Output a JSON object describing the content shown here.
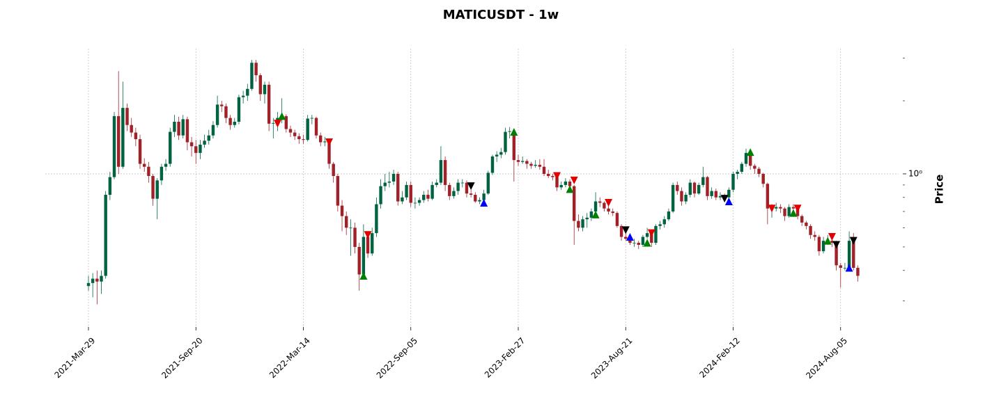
{
  "chart_data": {
    "type": "candlestick",
    "title": "MATICUSDT - 1w",
    "ylabel": "Price",
    "yscale": "log",
    "grid": true,
    "up_color": "#006340",
    "down_color": "#a02128",
    "ylim": [
      0.234,
      3.28
    ],
    "yticks": [
      {
        "value": 1,
        "label": "10⁰"
      }
    ],
    "yticks_minor": [
      0.3,
      0.4,
      0.5,
      0.6,
      0.7,
      0.8,
      0.9,
      2,
      3
    ],
    "xticks": [
      {
        "value": "2021-03-29",
        "label": "2021-Mar-29"
      },
      {
        "value": "2021-09-20",
        "label": "2021-Sep-20"
      },
      {
        "value": "2022-03-14",
        "label": "2022-Mar-14"
      },
      {
        "value": "2022-09-05",
        "label": "2022-Sep-05"
      },
      {
        "value": "2023-02-27",
        "label": "2023-Feb-27"
      },
      {
        "value": "2023-08-21",
        "label": "2023-Aug-21"
      },
      {
        "value": "2024-02-12",
        "label": "2024-Feb-12"
      },
      {
        "value": "2024-08-05",
        "label": "2024-Aug-05"
      }
    ],
    "x": [
      "2021-03-29",
      "2021-04-05",
      "2021-04-12",
      "2021-04-19",
      "2021-04-26",
      "2021-05-03",
      "2021-05-10",
      "2021-05-17",
      "2021-05-24",
      "2021-05-31",
      "2021-06-07",
      "2021-06-14",
      "2021-06-21",
      "2021-06-28",
      "2021-07-05",
      "2021-07-12",
      "2021-07-19",
      "2021-07-26",
      "2021-08-02",
      "2021-08-09",
      "2021-08-16",
      "2021-08-23",
      "2021-08-30",
      "2021-09-06",
      "2021-09-13",
      "2021-09-20",
      "2021-09-27",
      "2021-10-04",
      "2021-10-11",
      "2021-10-18",
      "2021-10-25",
      "2021-11-01",
      "2021-11-08",
      "2021-11-15",
      "2021-11-22",
      "2021-11-29",
      "2021-12-06",
      "2021-12-13",
      "2021-12-20",
      "2021-12-27",
      "2022-01-03",
      "2022-01-10",
      "2022-01-17",
      "2022-01-24",
      "2022-01-31",
      "2022-02-07",
      "2022-02-14",
      "2022-02-21",
      "2022-02-28",
      "2022-03-07",
      "2022-03-14",
      "2022-03-21",
      "2022-03-28",
      "2022-04-04",
      "2022-04-11",
      "2022-04-18",
      "2022-04-25",
      "2022-05-02",
      "2022-05-09",
      "2022-05-16",
      "2022-05-23",
      "2022-05-30",
      "2022-06-06",
      "2022-06-13",
      "2022-06-20",
      "2022-06-27",
      "2022-07-04",
      "2022-07-11",
      "2022-07-18",
      "2022-07-25",
      "2022-08-01",
      "2022-08-08",
      "2022-08-15",
      "2022-08-22",
      "2022-08-29",
      "2022-09-05",
      "2022-09-12",
      "2022-09-19",
      "2022-09-26",
      "2022-10-03",
      "2022-10-10",
      "2022-10-17",
      "2022-10-24",
      "2022-10-31",
      "2022-11-07",
      "2022-11-14",
      "2022-11-21",
      "2022-11-28",
      "2022-12-05",
      "2022-12-12",
      "2022-12-19",
      "2022-12-26",
      "2023-01-02",
      "2023-01-09",
      "2023-01-16",
      "2023-01-23",
      "2023-01-30",
      "2023-02-06",
      "2023-02-13",
      "2023-02-20",
      "2023-02-27",
      "2023-03-06",
      "2023-03-13",
      "2023-03-20",
      "2023-03-27",
      "2023-04-03",
      "2023-04-10",
      "2023-04-17",
      "2023-04-24",
      "2023-05-01",
      "2023-05-08",
      "2023-05-15",
      "2023-05-22",
      "2023-05-29",
      "2023-06-05",
      "2023-06-12",
      "2023-06-19",
      "2023-06-26",
      "2023-07-03",
      "2023-07-10",
      "2023-07-17",
      "2023-07-24",
      "2023-07-31",
      "2023-08-07",
      "2023-08-14",
      "2023-08-21",
      "2023-08-28",
      "2023-09-04",
      "2023-09-11",
      "2023-09-18",
      "2023-09-25",
      "2023-10-02",
      "2023-10-09",
      "2023-10-16",
      "2023-10-23",
      "2023-10-30",
      "2023-11-06",
      "2023-11-13",
      "2023-11-20",
      "2023-11-27",
      "2023-12-04",
      "2023-12-11",
      "2023-12-18",
      "2023-12-25",
      "2024-01-01",
      "2024-01-08",
      "2024-01-15",
      "2024-01-22",
      "2024-01-29",
      "2024-02-05",
      "2024-02-12",
      "2024-02-19",
      "2024-02-26",
      "2024-03-04",
      "2024-03-11",
      "2024-03-18",
      "2024-03-25",
      "2024-04-01",
      "2024-04-08",
      "2024-04-15",
      "2024-04-22",
      "2024-04-29",
      "2024-05-06",
      "2024-05-13",
      "2024-05-20",
      "2024-05-27",
      "2024-06-03",
      "2024-06-10",
      "2024-06-17",
      "2024-06-24",
      "2024-07-01",
      "2024-07-08",
      "2024-07-15",
      "2024-07-22",
      "2024-07-29",
      "2024-08-05",
      "2024-08-12",
      "2024-08-19",
      "2024-08-26",
      "2024-09-02"
    ],
    "ohlc": [
      [
        0.345,
        0.38,
        0.33,
        0.355
      ],
      [
        0.355,
        0.39,
        0.31,
        0.37
      ],
      [
        0.37,
        0.4,
        0.29,
        0.36
      ],
      [
        0.36,
        0.4,
        0.32,
        0.38
      ],
      [
        0.38,
        0.85,
        0.37,
        0.82
      ],
      [
        0.82,
        1.02,
        0.78,
        0.97
      ],
      [
        0.97,
        1.8,
        0.95,
        1.73
      ],
      [
        1.73,
        2.65,
        1.0,
        1.07
      ],
      [
        1.07,
        2.4,
        1.05,
        1.87
      ],
      [
        1.87,
        1.95,
        1.5,
        1.59
      ],
      [
        1.59,
        1.7,
        1.42,
        1.48
      ],
      [
        1.48,
        1.55,
        1.3,
        1.39
      ],
      [
        1.39,
        1.45,
        1.05,
        1.1
      ],
      [
        1.1,
        1.16,
        1.02,
        1.07
      ],
      [
        1.07,
        1.12,
        0.92,
        0.98
      ],
      [
        0.98,
        1.0,
        0.74,
        0.79
      ],
      [
        0.79,
        0.96,
        0.65,
        0.94
      ],
      [
        0.94,
        1.1,
        0.9,
        1.07
      ],
      [
        1.07,
        1.15,
        1.03,
        1.1
      ],
      [
        1.1,
        1.55,
        1.07,
        1.49
      ],
      [
        1.49,
        1.75,
        1.42,
        1.64
      ],
      [
        1.64,
        1.72,
        1.38,
        1.44
      ],
      [
        1.44,
        1.75,
        1.4,
        1.68
      ],
      [
        1.68,
        1.72,
        1.25,
        1.35
      ],
      [
        1.35,
        1.42,
        1.18,
        1.3
      ],
      [
        1.3,
        1.38,
        1.1,
        1.22
      ],
      [
        1.22,
        1.38,
        1.15,
        1.32
      ],
      [
        1.32,
        1.45,
        1.28,
        1.37
      ],
      [
        1.37,
        1.52,
        1.32,
        1.44
      ],
      [
        1.44,
        1.65,
        1.4,
        1.59
      ],
      [
        1.59,
        2.1,
        1.55,
        1.93
      ],
      [
        1.93,
        2.0,
        1.8,
        1.9
      ],
      [
        1.9,
        1.95,
        1.62,
        1.7
      ],
      [
        1.7,
        1.75,
        1.52,
        1.59
      ],
      [
        1.59,
        1.7,
        1.55,
        1.64
      ],
      [
        1.64,
        2.12,
        1.6,
        2.07
      ],
      [
        2.07,
        2.2,
        1.95,
        2.1
      ],
      [
        2.1,
        2.35,
        2.0,
        2.24
      ],
      [
        2.24,
        2.95,
        2.2,
        2.87
      ],
      [
        2.87,
        2.95,
        2.4,
        2.55
      ],
      [
        2.55,
        2.6,
        2.0,
        2.13
      ],
      [
        2.13,
        2.4,
        1.95,
        2.33
      ],
      [
        2.33,
        2.4,
        1.5,
        1.61
      ],
      [
        1.61,
        1.7,
        1.4,
        1.62
      ],
      [
        1.62,
        1.8,
        1.5,
        1.7
      ],
      [
        1.7,
        2.05,
        1.62,
        1.73
      ],
      [
        1.73,
        1.76,
        1.48,
        1.53
      ],
      [
        1.53,
        1.58,
        1.42,
        1.48
      ],
      [
        1.48,
        1.52,
        1.38,
        1.43
      ],
      [
        1.43,
        1.47,
        1.33,
        1.39
      ],
      [
        1.39,
        1.45,
        1.33,
        1.38
      ],
      [
        1.38,
        1.75,
        1.36,
        1.69
      ],
      [
        1.69,
        1.75,
        1.6,
        1.7
      ],
      [
        1.7,
        1.72,
        1.4,
        1.44
      ],
      [
        1.44,
        1.48,
        1.3,
        1.35
      ],
      [
        1.35,
        1.42,
        1.3,
        1.36
      ],
      [
        1.36,
        1.4,
        1.05,
        1.1
      ],
      [
        1.1,
        1.12,
        0.92,
        0.98
      ],
      [
        0.98,
        1.0,
        0.7,
        0.74
      ],
      [
        0.74,
        0.78,
        0.58,
        0.67
      ],
      [
        0.67,
        0.7,
        0.56,
        0.6
      ],
      [
        0.6,
        0.65,
        0.46,
        0.6
      ],
      [
        0.6,
        0.63,
        0.47,
        0.5
      ],
      [
        0.5,
        0.52,
        0.33,
        0.385
      ],
      [
        0.385,
        0.62,
        0.37,
        0.55
      ],
      [
        0.55,
        0.58,
        0.45,
        0.47
      ],
      [
        0.47,
        0.6,
        0.46,
        0.57
      ],
      [
        0.57,
        0.8,
        0.55,
        0.75
      ],
      [
        0.75,
        0.95,
        0.72,
        0.89
      ],
      [
        0.89,
        1.0,
        0.85,
        0.92
      ],
      [
        0.92,
        1.02,
        0.88,
        0.93
      ],
      [
        0.93,
        1.04,
        0.9,
        1.0
      ],
      [
        1.0,
        1.02,
        0.74,
        0.77
      ],
      [
        0.77,
        0.85,
        0.75,
        0.8
      ],
      [
        0.8,
        0.93,
        0.78,
        0.9
      ],
      [
        0.9,
        0.93,
        0.73,
        0.76
      ],
      [
        0.76,
        0.8,
        0.72,
        0.76
      ],
      [
        0.76,
        0.8,
        0.74,
        0.78
      ],
      [
        0.78,
        0.85,
        0.76,
        0.82
      ],
      [
        0.82,
        0.86,
        0.77,
        0.79
      ],
      [
        0.79,
        0.93,
        0.78,
        0.9
      ],
      [
        0.9,
        0.95,
        0.88,
        0.92
      ],
      [
        0.92,
        1.3,
        0.9,
        1.14
      ],
      [
        1.14,
        1.18,
        0.85,
        0.9
      ],
      [
        0.9,
        0.92,
        0.78,
        0.81
      ],
      [
        0.81,
        0.88,
        0.79,
        0.85
      ],
      [
        0.85,
        0.95,
        0.82,
        0.92
      ],
      [
        0.92,
        0.95,
        0.88,
        0.92
      ],
      [
        0.92,
        0.94,
        0.8,
        0.83
      ],
      [
        0.83,
        0.86,
        0.8,
        0.82
      ],
      [
        0.82,
        0.84,
        0.76,
        0.77
      ],
      [
        0.77,
        0.8,
        0.75,
        0.78
      ],
      [
        0.78,
        0.86,
        0.76,
        0.83
      ],
      [
        0.83,
        1.03,
        0.82,
        1.01
      ],
      [
        1.01,
        1.2,
        0.99,
        1.18
      ],
      [
        1.18,
        1.24,
        1.12,
        1.2
      ],
      [
        1.2,
        1.28,
        1.16,
        1.23
      ],
      [
        1.23,
        1.55,
        1.2,
        1.49
      ],
      [
        1.49,
        1.56,
        1.4,
        1.5
      ],
      [
        1.5,
        1.52,
        0.93,
        1.14
      ],
      [
        1.14,
        1.2,
        1.08,
        1.12
      ],
      [
        1.12,
        1.18,
        1.1,
        1.13
      ],
      [
        1.13,
        1.15,
        1.05,
        1.1
      ],
      [
        1.1,
        1.12,
        1.05,
        1.08
      ],
      [
        1.08,
        1.14,
        1.06,
        1.09
      ],
      [
        1.09,
        1.15,
        1.04,
        1.07
      ],
      [
        1.07,
        1.15,
        0.98,
        1.0
      ],
      [
        1.0,
        1.04,
        0.96,
        0.98
      ],
      [
        0.98,
        1.0,
        0.94,
        0.97
      ],
      [
        0.97,
        0.98,
        0.85,
        0.88
      ],
      [
        0.88,
        0.93,
        0.86,
        0.9
      ],
      [
        0.9,
        0.96,
        0.88,
        0.93
      ],
      [
        0.93,
        0.95,
        0.86,
        0.89
      ],
      [
        0.89,
        0.9,
        0.51,
        0.64
      ],
      [
        0.64,
        0.68,
        0.58,
        0.6
      ],
      [
        0.6,
        0.67,
        0.58,
        0.65
      ],
      [
        0.65,
        0.69,
        0.6,
        0.66
      ],
      [
        0.66,
        0.72,
        0.64,
        0.7
      ],
      [
        0.7,
        0.84,
        0.68,
        0.77
      ],
      [
        0.77,
        0.8,
        0.73,
        0.76
      ],
      [
        0.76,
        0.77,
        0.7,
        0.72
      ],
      [
        0.72,
        0.74,
        0.68,
        0.7
      ],
      [
        0.7,
        0.72,
        0.67,
        0.69
      ],
      [
        0.69,
        0.7,
        0.6,
        0.61
      ],
      [
        0.61,
        0.62,
        0.53,
        0.55
      ],
      [
        0.55,
        0.58,
        0.53,
        0.54
      ],
      [
        0.54,
        0.55,
        0.51,
        0.52
      ],
      [
        0.52,
        0.54,
        0.5,
        0.52
      ],
      [
        0.52,
        0.53,
        0.49,
        0.51
      ],
      [
        0.51,
        0.56,
        0.5,
        0.55
      ],
      [
        0.55,
        0.6,
        0.54,
        0.57
      ],
      [
        0.57,
        0.58,
        0.5,
        0.52
      ],
      [
        0.52,
        0.62,
        0.51,
        0.61
      ],
      [
        0.61,
        0.64,
        0.59,
        0.62
      ],
      [
        0.62,
        0.67,
        0.6,
        0.65
      ],
      [
        0.65,
        0.72,
        0.64,
        0.7
      ],
      [
        0.7,
        0.92,
        0.69,
        0.9
      ],
      [
        0.9,
        0.93,
        0.82,
        0.85
      ],
      [
        0.85,
        0.88,
        0.74,
        0.77
      ],
      [
        0.77,
        0.84,
        0.75,
        0.82
      ],
      [
        0.82,
        0.95,
        0.8,
        0.92
      ],
      [
        0.92,
        0.93,
        0.8,
        0.83
      ],
      [
        0.83,
        0.92,
        0.82,
        0.9
      ],
      [
        0.9,
        1.07,
        0.88,
        0.97
      ],
      [
        0.97,
        0.98,
        0.78,
        0.81
      ],
      [
        0.81,
        0.88,
        0.79,
        0.85
      ],
      [
        0.85,
        0.87,
        0.78,
        0.8
      ],
      [
        0.8,
        0.84,
        0.78,
        0.81
      ],
      [
        0.81,
        0.83,
        0.77,
        0.8
      ],
      [
        0.8,
        0.88,
        0.78,
        0.86
      ],
      [
        0.86,
        1.02,
        0.84,
        1.0
      ],
      [
        1.0,
        1.04,
        0.95,
        1.02
      ],
      [
        1.02,
        1.12,
        1.0,
        1.1
      ],
      [
        1.1,
        1.27,
        1.07,
        1.22
      ],
      [
        1.22,
        1.24,
        1.04,
        1.08
      ],
      [
        1.08,
        1.1,
        1.0,
        1.05
      ],
      [
        1.05,
        1.07,
        0.97,
        1.0
      ],
      [
        1.0,
        1.01,
        0.88,
        0.91
      ],
      [
        0.91,
        0.92,
        0.62,
        0.72
      ],
      [
        0.72,
        0.75,
        0.66,
        0.72
      ],
      [
        0.72,
        0.76,
        0.7,
        0.73
      ],
      [
        0.73,
        0.75,
        0.69,
        0.72
      ],
      [
        0.72,
        0.73,
        0.64,
        0.67
      ],
      [
        0.67,
        0.75,
        0.66,
        0.73
      ],
      [
        0.73,
        0.75,
        0.7,
        0.72
      ],
      [
        0.72,
        0.73,
        0.65,
        0.67
      ],
      [
        0.67,
        0.68,
        0.61,
        0.63
      ],
      [
        0.63,
        0.64,
        0.59,
        0.61
      ],
      [
        0.61,
        0.62,
        0.54,
        0.56
      ],
      [
        0.56,
        0.58,
        0.53,
        0.55
      ],
      [
        0.55,
        0.56,
        0.46,
        0.48
      ],
      [
        0.48,
        0.55,
        0.47,
        0.53
      ],
      [
        0.53,
        0.56,
        0.51,
        0.53
      ],
      [
        0.53,
        0.55,
        0.5,
        0.52
      ],
      [
        0.52,
        0.53,
        0.4,
        0.42
      ],
      [
        0.42,
        0.43,
        0.34,
        0.41
      ],
      [
        0.41,
        0.43,
        0.4,
        0.41
      ],
      [
        0.41,
        0.58,
        0.4,
        0.53
      ],
      [
        0.53,
        0.57,
        0.4,
        0.41
      ],
      [
        0.41,
        0.42,
        0.36,
        0.38
      ]
    ],
    "markers": [
      {
        "color": "#008000",
        "shape": "up",
        "x": [
          "2022-02-07",
          "2022-06-20",
          "2023-02-20",
          "2023-05-22",
          "2023-07-03",
          "2023-09-25",
          "2024-03-11",
          "2024-05-20",
          "2024-07-15"
        ],
        "values": [
          1.73,
          0.38,
          1.49,
          0.865,
          0.68,
          0.52,
          1.23,
          0.69,
          0.53
        ]
      },
      {
        "color": "#e00000",
        "shape": "down",
        "x": [
          "2022-01-31",
          "2022-04-25",
          "2022-06-27",
          "2023-05-01",
          "2023-05-29",
          "2023-07-24",
          "2023-10-02",
          "2024-04-15",
          "2024-05-27",
          "2024-07-22"
        ],
        "values": [
          1.61,
          1.35,
          0.56,
          0.98,
          0.94,
          0.76,
          0.57,
          0.72,
          0.72,
          0.55
        ]
      },
      {
        "color": "#000000",
        "shape": "down",
        "x": [
          "2022-12-12",
          "2023-08-21",
          "2024-01-29",
          "2024-07-29",
          "2024-08-26"
        ],
        "values": [
          0.89,
          0.586,
          0.79,
          0.51,
          0.53
        ]
      },
      {
        "color": "#0000ff",
        "shape": "up",
        "x": [
          "2023-01-02",
          "2023-08-28",
          "2024-02-05",
          "2024-08-19"
        ],
        "values": [
          0.76,
          0.55,
          0.77,
          0.41
        ]
      }
    ]
  }
}
